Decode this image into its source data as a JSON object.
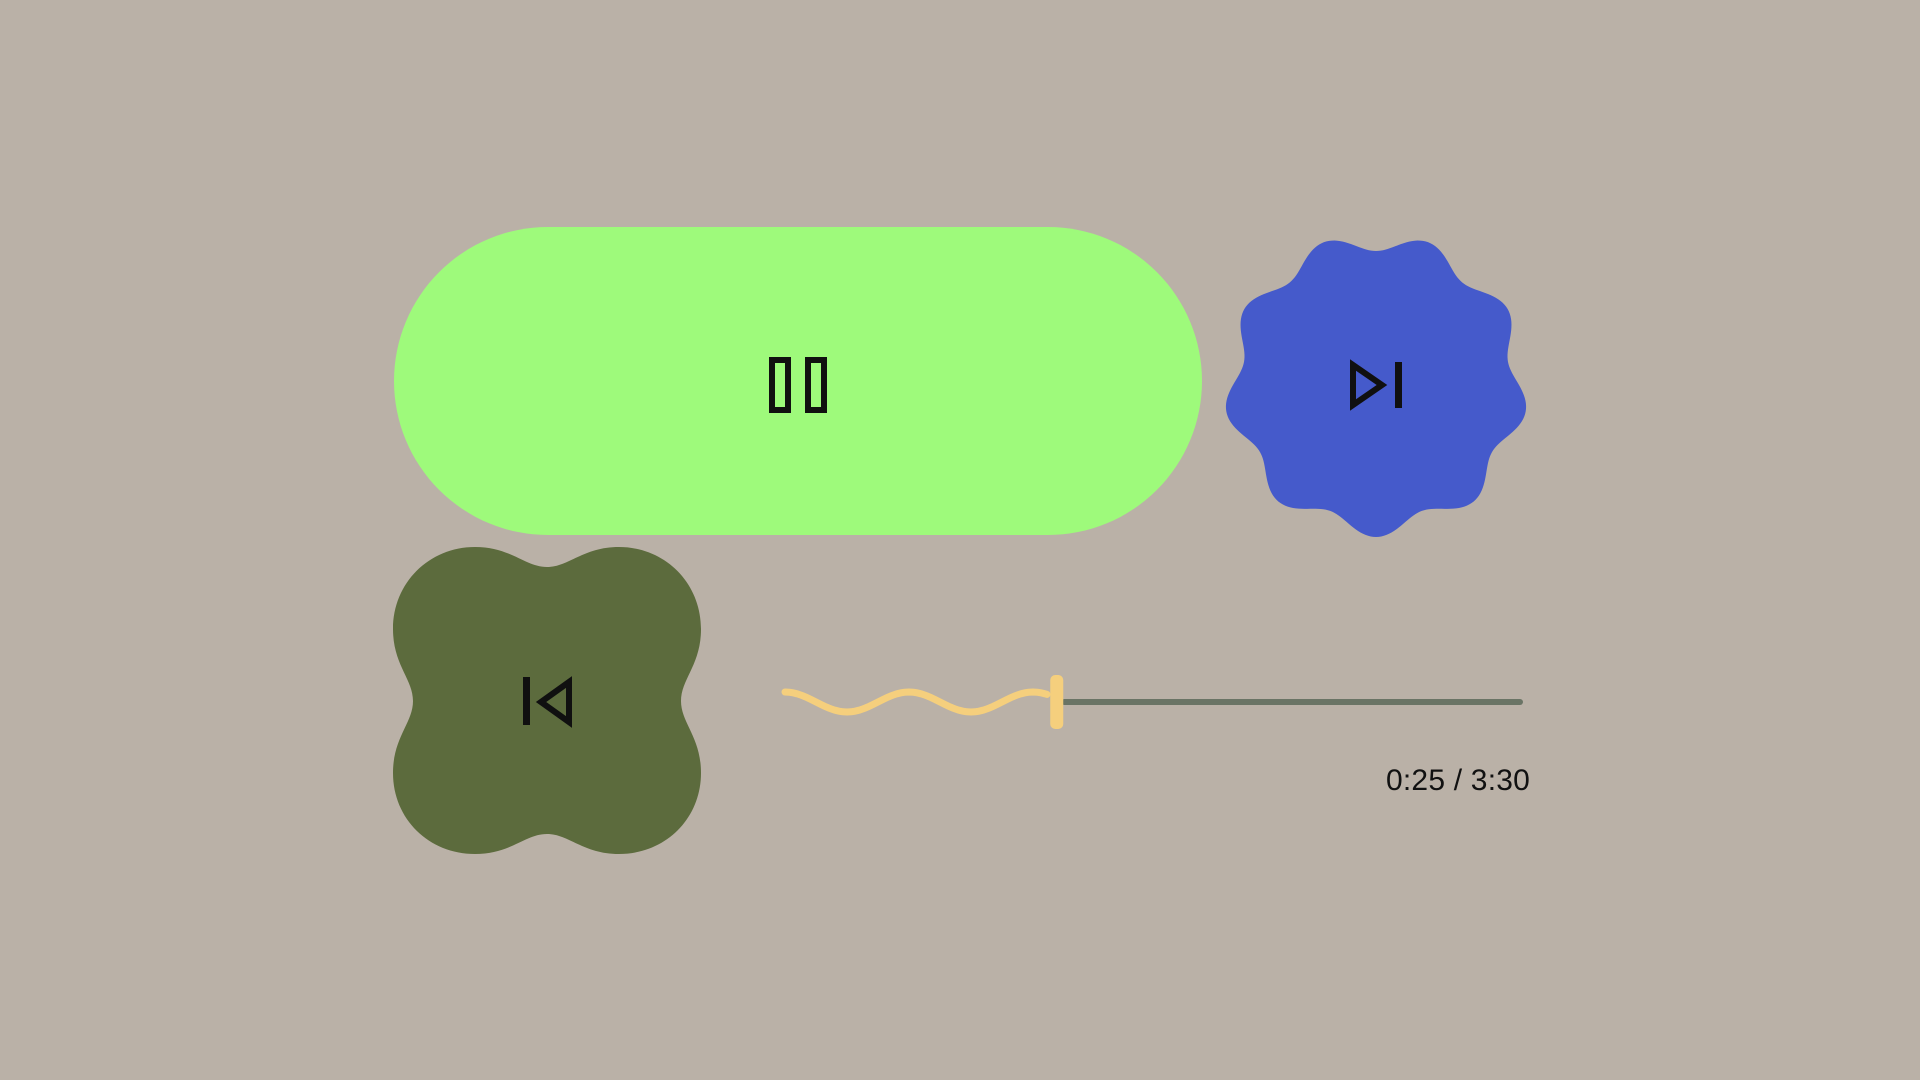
{
  "player": {
    "controls": {
      "play_pause": {
        "state": "playing",
        "icon": "pause-icon"
      },
      "next": {
        "icon": "skip-next-icon"
      },
      "previous": {
        "icon": "skip-previous-icon"
      }
    },
    "progress": {
      "elapsed_seconds": 25,
      "total_seconds": 210,
      "time_label": "0:25 / 3:30"
    }
  },
  "colors": {
    "background": "#BAB1A7",
    "play_button": "#9EFA7B",
    "next_button": "#455ACB",
    "previous_button": "#5C6B3D",
    "seek_played": "#F5CF7D",
    "seek_remaining": "#6A7465",
    "icon": "#101010"
  }
}
